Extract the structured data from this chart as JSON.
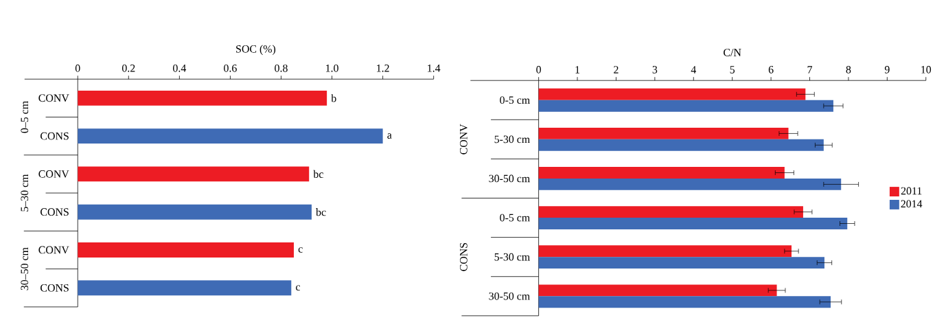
{
  "chart_data": [
    {
      "type": "bar",
      "orientation": "horizontal",
      "xlabel": "SOC (%)",
      "categories": [
        "CONV",
        "CONS",
        "CONV",
        "CONS",
        "CONV",
        "CONS"
      ],
      "values": [
        0.98,
        1.2,
        0.91,
        0.92,
        0.85,
        0.84
      ],
      "colors": [
        "#ed1c24",
        "#3f6bb5",
        "#ed1c24",
        "#3f6bb5",
        "#ed1c24",
        "#3f6bb5"
      ],
      "value_labels": [
        "b",
        "a",
        "bc",
        "bc",
        "c",
        "c"
      ],
      "annotations": [
        "0–5 cm",
        "5–30 cm",
        "30–50 cm"
      ],
      "xlim": [
        0,
        1.4
      ],
      "xticks": [
        0,
        0.2,
        0.4,
        0.6,
        0.8,
        {
          "value": 1,
          "label": "1.0"
        },
        1.2,
        1.4
      ],
      "grid": false,
      "legend": false
    },
    {
      "type": "bar",
      "orientation": "horizontal",
      "xlabel": "C/N",
      "categories": [
        "0-5 cm",
        "5-30 cm",
        "30-50 cm",
        "0-5 cm",
        "5-30 cm",
        "30-50 cm"
      ],
      "series": [
        {
          "name": "2011",
          "color": "#ed1c24",
          "values": [
            6.89,
            6.45,
            6.35,
            6.83,
            6.53,
            6.15
          ],
          "errors": [
            0.23,
            0.24,
            0.24,
            0.23,
            0.18,
            0.22
          ]
        },
        {
          "name": "2014",
          "color": "#3f6bb5",
          "values": [
            7.61,
            7.36,
            7.81,
            7.97,
            7.38,
            7.54
          ],
          "errors": [
            0.25,
            0.22,
            0.45,
            0.19,
            0.19,
            0.28
          ]
        }
      ],
      "annotations": [
        "CONV",
        "CONS"
      ],
      "xlim": [
        0,
        10
      ],
      "xticks": [
        0,
        1,
        2,
        3,
        4,
        5,
        6,
        7,
        8,
        9,
        10
      ],
      "grid": false,
      "legend": "right"
    }
  ]
}
